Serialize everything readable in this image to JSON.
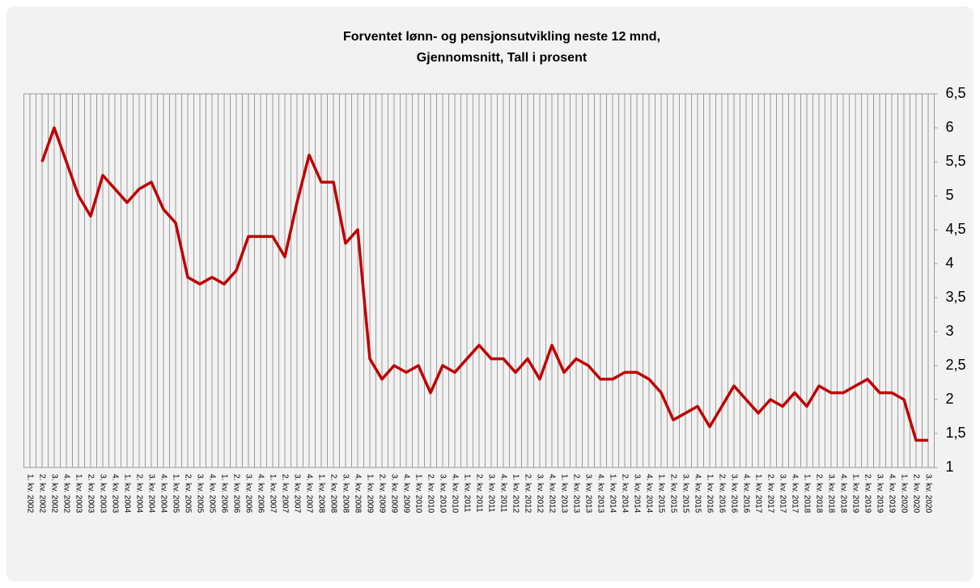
{
  "chart_data": {
    "type": "line",
    "title": [
      "Forventet lønn- og pensjonsutvikling neste 12 mnd,",
      "Gjennomsnitt, Tall i prosent"
    ],
    "categories": [
      "1. kv. 2002",
      "2. kv. 2002",
      "3. kv. 2002",
      "4. kv. 2002",
      "1. kv. 2003",
      "2. kv. 2003",
      "3. kv. 2003",
      "4. kv. 2003",
      "1. kv. 2004",
      "2. kv. 2004",
      "3. kv. 2004",
      "4. kv. 2004",
      "1. kv. 2005",
      "2. kv. 2005",
      "3. kv. 2005",
      "4. kv. 2005",
      "1. kv. 2006",
      "2. kv. 2006",
      "3. kv. 2006",
      "4. kv. 2006",
      "1. kv. 2007",
      "2. kv. 2007",
      "3. kv. 2007",
      "4. kv. 2007",
      "1. kv. 2008",
      "2. kv. 2008",
      "3. kv. 2008",
      "4. kv. 2008",
      "1. kv. 2009",
      "2. kv. 2009",
      "3. kv. 2009",
      "4. kv. 2009",
      "1. kv. 2010",
      "2. kv. 2010",
      "3. kv. 2010",
      "4. kv. 2010",
      "1. kv. 2011",
      "2. kv. 2011",
      "3. kv. 2011",
      "4. kv. 2011",
      "1. kv. 2012",
      "2. kv. 2012",
      "3. kv. 2012",
      "4. kv. 2012",
      "1. kv. 2013",
      "2. kv. 2013",
      "3. kv. 2013",
      "4. kv. 2013",
      "1. kv. 2014",
      "2. kv. 2014",
      "3. kv. 2014",
      "4. kv. 2014",
      "1. kv. 2015",
      "2. kv. 2015",
      "3. kv. 2015",
      "4. kv. 2015",
      "1. kv. 2016",
      "2. kv. 2016",
      "3. kv. 2016",
      "4. kv. 2016",
      "1. kv. 2017",
      "2. kv. 2017",
      "3. kv. 2017",
      "4. kv. 2017",
      "1. kv. 2018",
      "2. kv. 2018",
      "3. kv. 2018",
      "4. kv. 2018",
      "1. kv. 2019",
      "2. kv. 2019",
      "3. kv. 2019",
      "4. kv. 2019",
      "1. kv. 2020",
      "2. kv. 2020",
      "3. kv. 2020"
    ],
    "series": [
      {
        "color": "#c00000",
        "values": [
          null,
          5.5,
          6.0,
          5.5,
          5.0,
          4.7,
          5.3,
          5.1,
          4.9,
          5.1,
          5.2,
          4.8,
          4.6,
          3.8,
          3.7,
          3.8,
          3.7,
          3.9,
          4.4,
          4.4,
          4.4,
          4.1,
          4.9,
          5.6,
          5.2,
          5.2,
          4.3,
          4.5,
          2.6,
          2.3,
          2.5,
          2.4,
          2.5,
          2.1,
          2.5,
          2.4,
          2.6,
          2.8,
          2.6,
          2.6,
          2.4,
          2.6,
          2.3,
          2.8,
          2.4,
          2.6,
          2.5,
          2.3,
          2.3,
          2.4,
          2.4,
          2.3,
          2.1,
          1.7,
          1.8,
          1.9,
          1.6,
          1.9,
          2.2,
          2.0,
          1.8,
          2.0,
          1.9,
          2.1,
          1.9,
          2.2,
          2.1,
          2.1,
          2.2,
          2.3,
          2.1,
          2.1,
          2.0,
          1.4,
          1.4
        ]
      }
    ],
    "ylim": [
      1,
      6.5
    ],
    "yticks": [
      1,
      {
        "value": 1.5,
        "label": "1,5"
      },
      2,
      {
        "value": 2.5,
        "label": "2,5"
      },
      3,
      {
        "value": 3.5,
        "label": "3,5"
      },
      4,
      {
        "value": 4.5,
        "label": "4,5"
      },
      5,
      {
        "value": 5.5,
        "label": "5,5"
      },
      6,
      {
        "value": 6.5,
        "label": "6,5"
      }
    ],
    "yaxis_side": "right",
    "grid": "x"
  }
}
